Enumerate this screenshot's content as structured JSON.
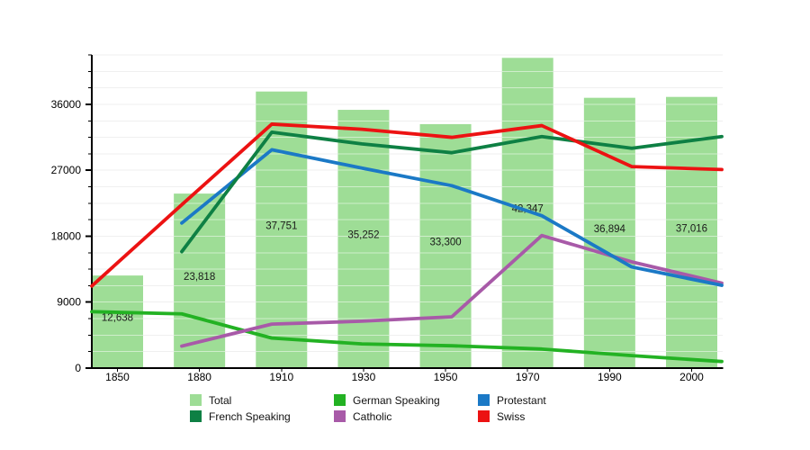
{
  "chart_data": {
    "type": "bar+line",
    "title": "",
    "categories": [
      "1850",
      "1880",
      "1910",
      "1930",
      "1950",
      "1970",
      "1990",
      "2000"
    ],
    "bars": {
      "name": "Total",
      "color": "#9edd96",
      "values": [
        12638,
        23818,
        37751,
        35252,
        33300,
        42347,
        36894,
        37016
      ],
      "labels": [
        "12,638",
        "23,818",
        "37,751",
        "35,252",
        "33,300",
        "42,347",
        "36,894",
        "37,016"
      ]
    },
    "series": [
      {
        "name": "German Speaking",
        "color": "#23b223",
        "values": [
          7700,
          7400,
          4100,
          3300,
          3050,
          2600,
          1700,
          900
        ]
      },
      {
        "name": "Catholic",
        "color": "#a85aa8",
        "values": [
          null,
          3000,
          6000,
          6400,
          7000,
          18100,
          14500,
          11600
        ]
      },
      {
        "name": "Protestant",
        "color": "#1b79c6",
        "values": [
          null,
          19800,
          29800,
          27300,
          24900,
          20800,
          13800,
          11300
        ]
      },
      {
        "name": "French Speaking",
        "color": "#0e8044",
        "values": [
          null,
          15900,
          32200,
          30600,
          29400,
          31600,
          30000,
          31600
        ]
      },
      {
        "name": "Swiss",
        "color": "#ec1212",
        "values": [
          11200,
          22300,
          33300,
          32600,
          31500,
          33100,
          27500,
          27100
        ]
      }
    ],
    "y_ticks": [
      "0",
      "9000",
      "18000",
      "27000",
      "36000"
    ],
    "y_tick_values": [
      0,
      9000,
      18000,
      27000,
      36000
    ],
    "y_minor_interval": 2250,
    "ylim": [
      0,
      42750
    ],
    "xlabel": "",
    "ylabel": "",
    "grid": true,
    "legend_position": "bottom",
    "axis_color": "#000000",
    "grid_color": "#dfdfdf"
  },
  "legend": {
    "items": [
      {
        "key": "total",
        "label": "Total",
        "color": "#9edd96"
      },
      {
        "key": "french-speaking",
        "label": "French Speaking",
        "color": "#0e8044"
      },
      {
        "key": "german-speaking",
        "label": "German Speaking",
        "color": "#23b223"
      },
      {
        "key": "catholic",
        "label": "Catholic",
        "color": "#a85aa8"
      },
      {
        "key": "protestant",
        "label": "Protestant",
        "color": "#1b79c6"
      },
      {
        "key": "swiss",
        "label": "Swiss",
        "color": "#ec1212"
      }
    ]
  }
}
